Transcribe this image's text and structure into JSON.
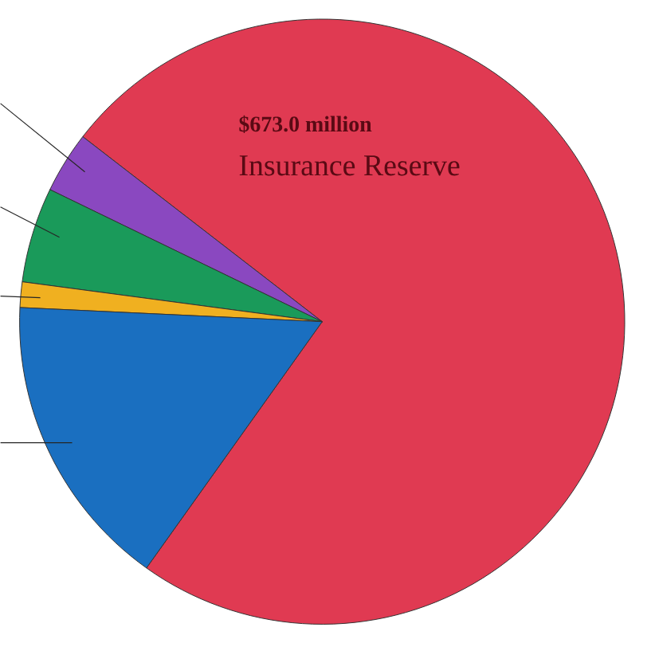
{
  "chart_data": {
    "type": "pie",
    "categories": [
      "Insurance Reserve",
      null,
      null,
      null,
      null
    ],
    "values": [
      673.0,
      29.7,
      46.0,
      12.3,
      143.7
    ],
    "value_labels": [
      "$673.0 million",
      null,
      null,
      null,
      null
    ],
    "colors": [
      "#e03a52",
      "#8a48c0",
      "#1a9a5a",
      "#f0b020",
      "#1a6fc0"
    ]
  }
}
